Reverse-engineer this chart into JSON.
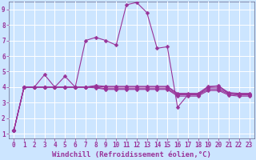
{
  "xlabel": "Windchill (Refroidissement éolien,°C)",
  "background_color": "#cce5ff",
  "grid_color": "#aaccdd",
  "line_color": "#993399",
  "xlim": [
    -0.5,
    23.5
  ],
  "ylim": [
    0.7,
    9.5
  ],
  "xticks": [
    0,
    1,
    2,
    3,
    4,
    5,
    6,
    7,
    8,
    9,
    10,
    11,
    12,
    13,
    14,
    15,
    16,
    17,
    18,
    19,
    20,
    21,
    22,
    23
  ],
  "yticks": [
    1,
    2,
    3,
    4,
    5,
    6,
    7,
    8,
    9
  ],
  "series": [
    [
      1.2,
      4.0,
      4.0,
      4.8,
      4.0,
      4.7,
      4.0,
      7.0,
      7.2,
      7.0,
      6.7,
      9.3,
      9.45,
      8.8,
      6.5,
      6.6,
      2.7,
      3.5,
      3.5,
      4.0,
      4.1,
      3.6,
      3.5,
      3.5
    ],
    [
      1.2,
      4.0,
      4.0,
      4.0,
      4.0,
      4.0,
      4.0,
      4.0,
      4.05,
      4.0,
      4.0,
      4.0,
      4.0,
      4.0,
      4.0,
      4.0,
      3.55,
      3.55,
      3.55,
      3.95,
      3.95,
      3.6,
      3.55,
      3.55
    ],
    [
      1.2,
      4.0,
      4.0,
      4.0,
      4.0,
      4.0,
      4.0,
      4.0,
      4.0,
      3.9,
      3.9,
      3.9,
      3.9,
      3.9,
      3.9,
      3.9,
      3.5,
      3.5,
      3.5,
      3.85,
      3.85,
      3.55,
      3.5,
      3.5
    ],
    [
      1.2,
      4.0,
      4.0,
      4.0,
      4.0,
      4.0,
      4.0,
      4.0,
      3.95,
      3.85,
      3.85,
      3.85,
      3.85,
      3.85,
      3.85,
      3.85,
      3.42,
      3.42,
      3.42,
      3.78,
      3.78,
      3.48,
      3.42,
      3.42
    ],
    [
      1.2,
      4.0,
      4.0,
      4.0,
      4.0,
      4.0,
      4.0,
      4.0,
      4.1,
      4.05,
      4.05,
      4.05,
      4.05,
      4.05,
      4.05,
      4.05,
      3.6,
      3.6,
      3.6,
      4.05,
      4.05,
      3.65,
      3.6,
      3.6
    ]
  ],
  "marker": "D",
  "marker_size": 2.5,
  "line_width": 0.8,
  "xlabel_fontsize": 6.5,
  "tick_fontsize": 5.5
}
